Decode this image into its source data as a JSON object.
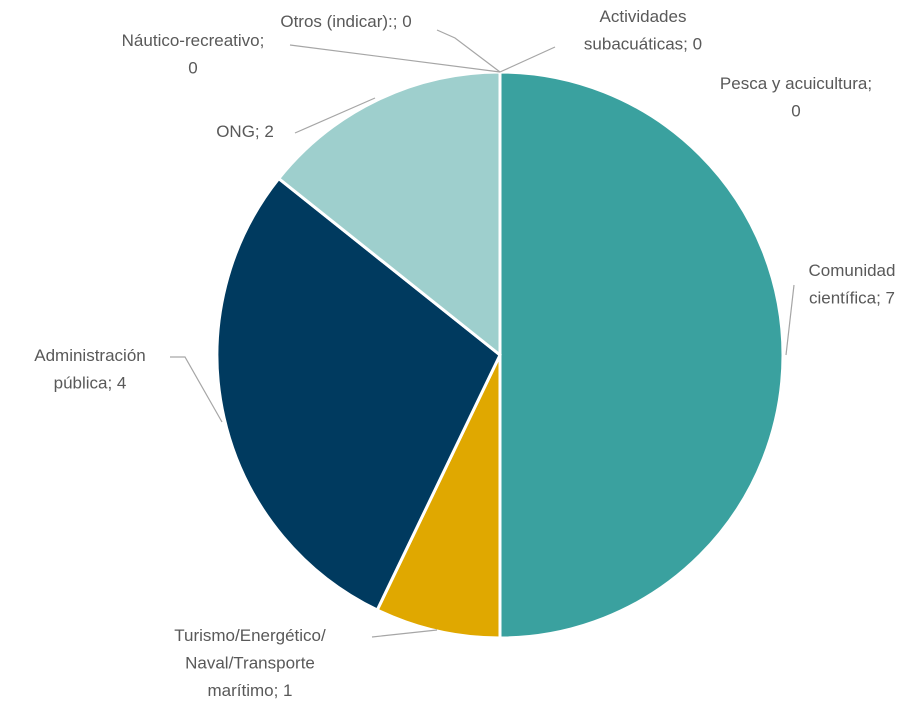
{
  "chart_data": {
    "type": "pie",
    "values": [
      0,
      0,
      7,
      1,
      4,
      2,
      0,
      0
    ],
    "value_labels": [
      "Actividades subacuáticas; 0",
      "Pesca y acuicultura; 0",
      "Comunidad científica; 7",
      "Turismo/Energético/Naval/Transporte marítimo; 1",
      "Administración pública; 4",
      "ONG; 2",
      "Náutico-recreativo; 0",
      "Otros (indicar):; 0"
    ],
    "colors": [
      "#2e6f8e",
      "#7f7f7f",
      "#3aa19f",
      "#e0a800",
      "#003a5f",
      "#9ecfcd",
      "#5b9bd5",
      "#a5a5a5"
    ]
  }
}
